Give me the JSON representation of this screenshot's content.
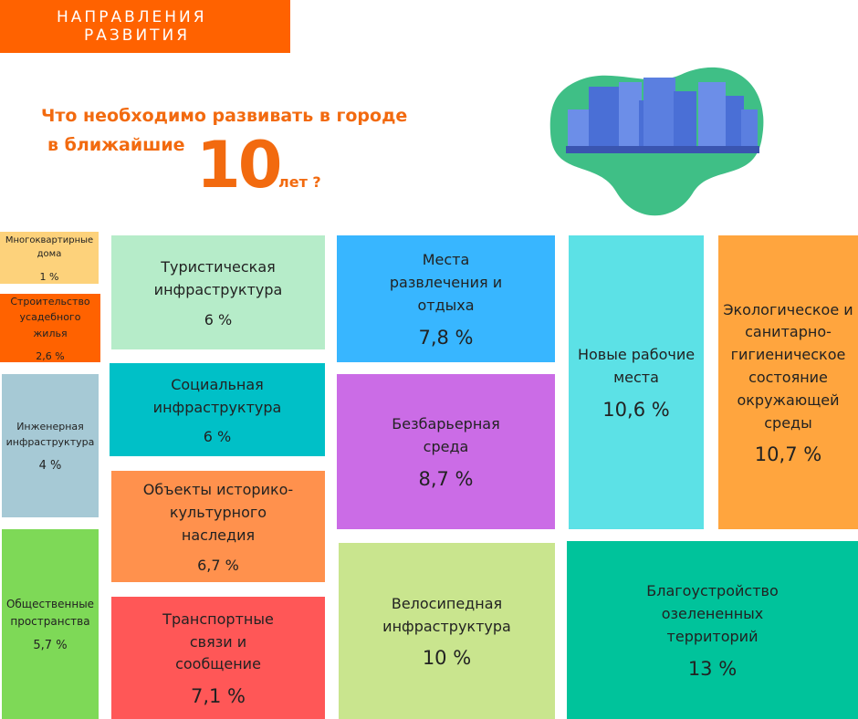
{
  "header": {
    "title_lines": [
      "НАПРАВЛЕНИЯ",
      "РАЗВИТИЯ"
    ]
  },
  "question": {
    "line1": "Что необходимо развивать в городе",
    "line2": "в ближайшие",
    "number": "10",
    "tail": "лет ?"
  },
  "tiles": [
    {
      "label_lines": [
        "Многоквартирные",
        "дома"
      ],
      "value": "1 %"
    },
    {
      "label_lines": [
        "Строительство",
        "усадебного",
        "жилья"
      ],
      "value": "2,6 %"
    },
    {
      "label_lines": [
        "Инженерная",
        "инфраструктура"
      ],
      "value": "4 %"
    },
    {
      "label_lines": [
        "Общественные",
        "пространства"
      ],
      "value": "5,7 %"
    },
    {
      "label_lines": [
        "Туристическая",
        "инфраструктура"
      ],
      "value": "6 %"
    },
    {
      "label_lines": [
        "Социальная",
        "инфраструктура"
      ],
      "value": "6 %"
    },
    {
      "label_lines": [
        "Объекты историко-",
        "культурного",
        "наследия"
      ],
      "value": "6,7 %"
    },
    {
      "label_lines": [
        "Транспортные",
        "связи и",
        "сообщение"
      ],
      "value": "7,1 %"
    },
    {
      "label_lines": [
        "Места",
        "развлечения и",
        "отдыха"
      ],
      "value": "7,8 %"
    },
    {
      "label_lines": [
        "Безбарьерная",
        "среда"
      ],
      "value": "8,7 %"
    },
    {
      "label_lines": [
        "Велосипедная",
        "инфраструктура"
      ],
      "value": "10 %"
    },
    {
      "label_lines": [
        "Новые рабочие",
        "места"
      ],
      "value": "10,6 %"
    },
    {
      "label_lines": [
        "Экологическое и",
        "санитарно-",
        "гигиеническое",
        "состояние",
        "окружающей",
        "среды"
      ],
      "value": "10,7 %"
    },
    {
      "label_lines": [
        "Благоустройство",
        "озелененных",
        "территорий"
      ],
      "value": "13 %"
    }
  ]
}
